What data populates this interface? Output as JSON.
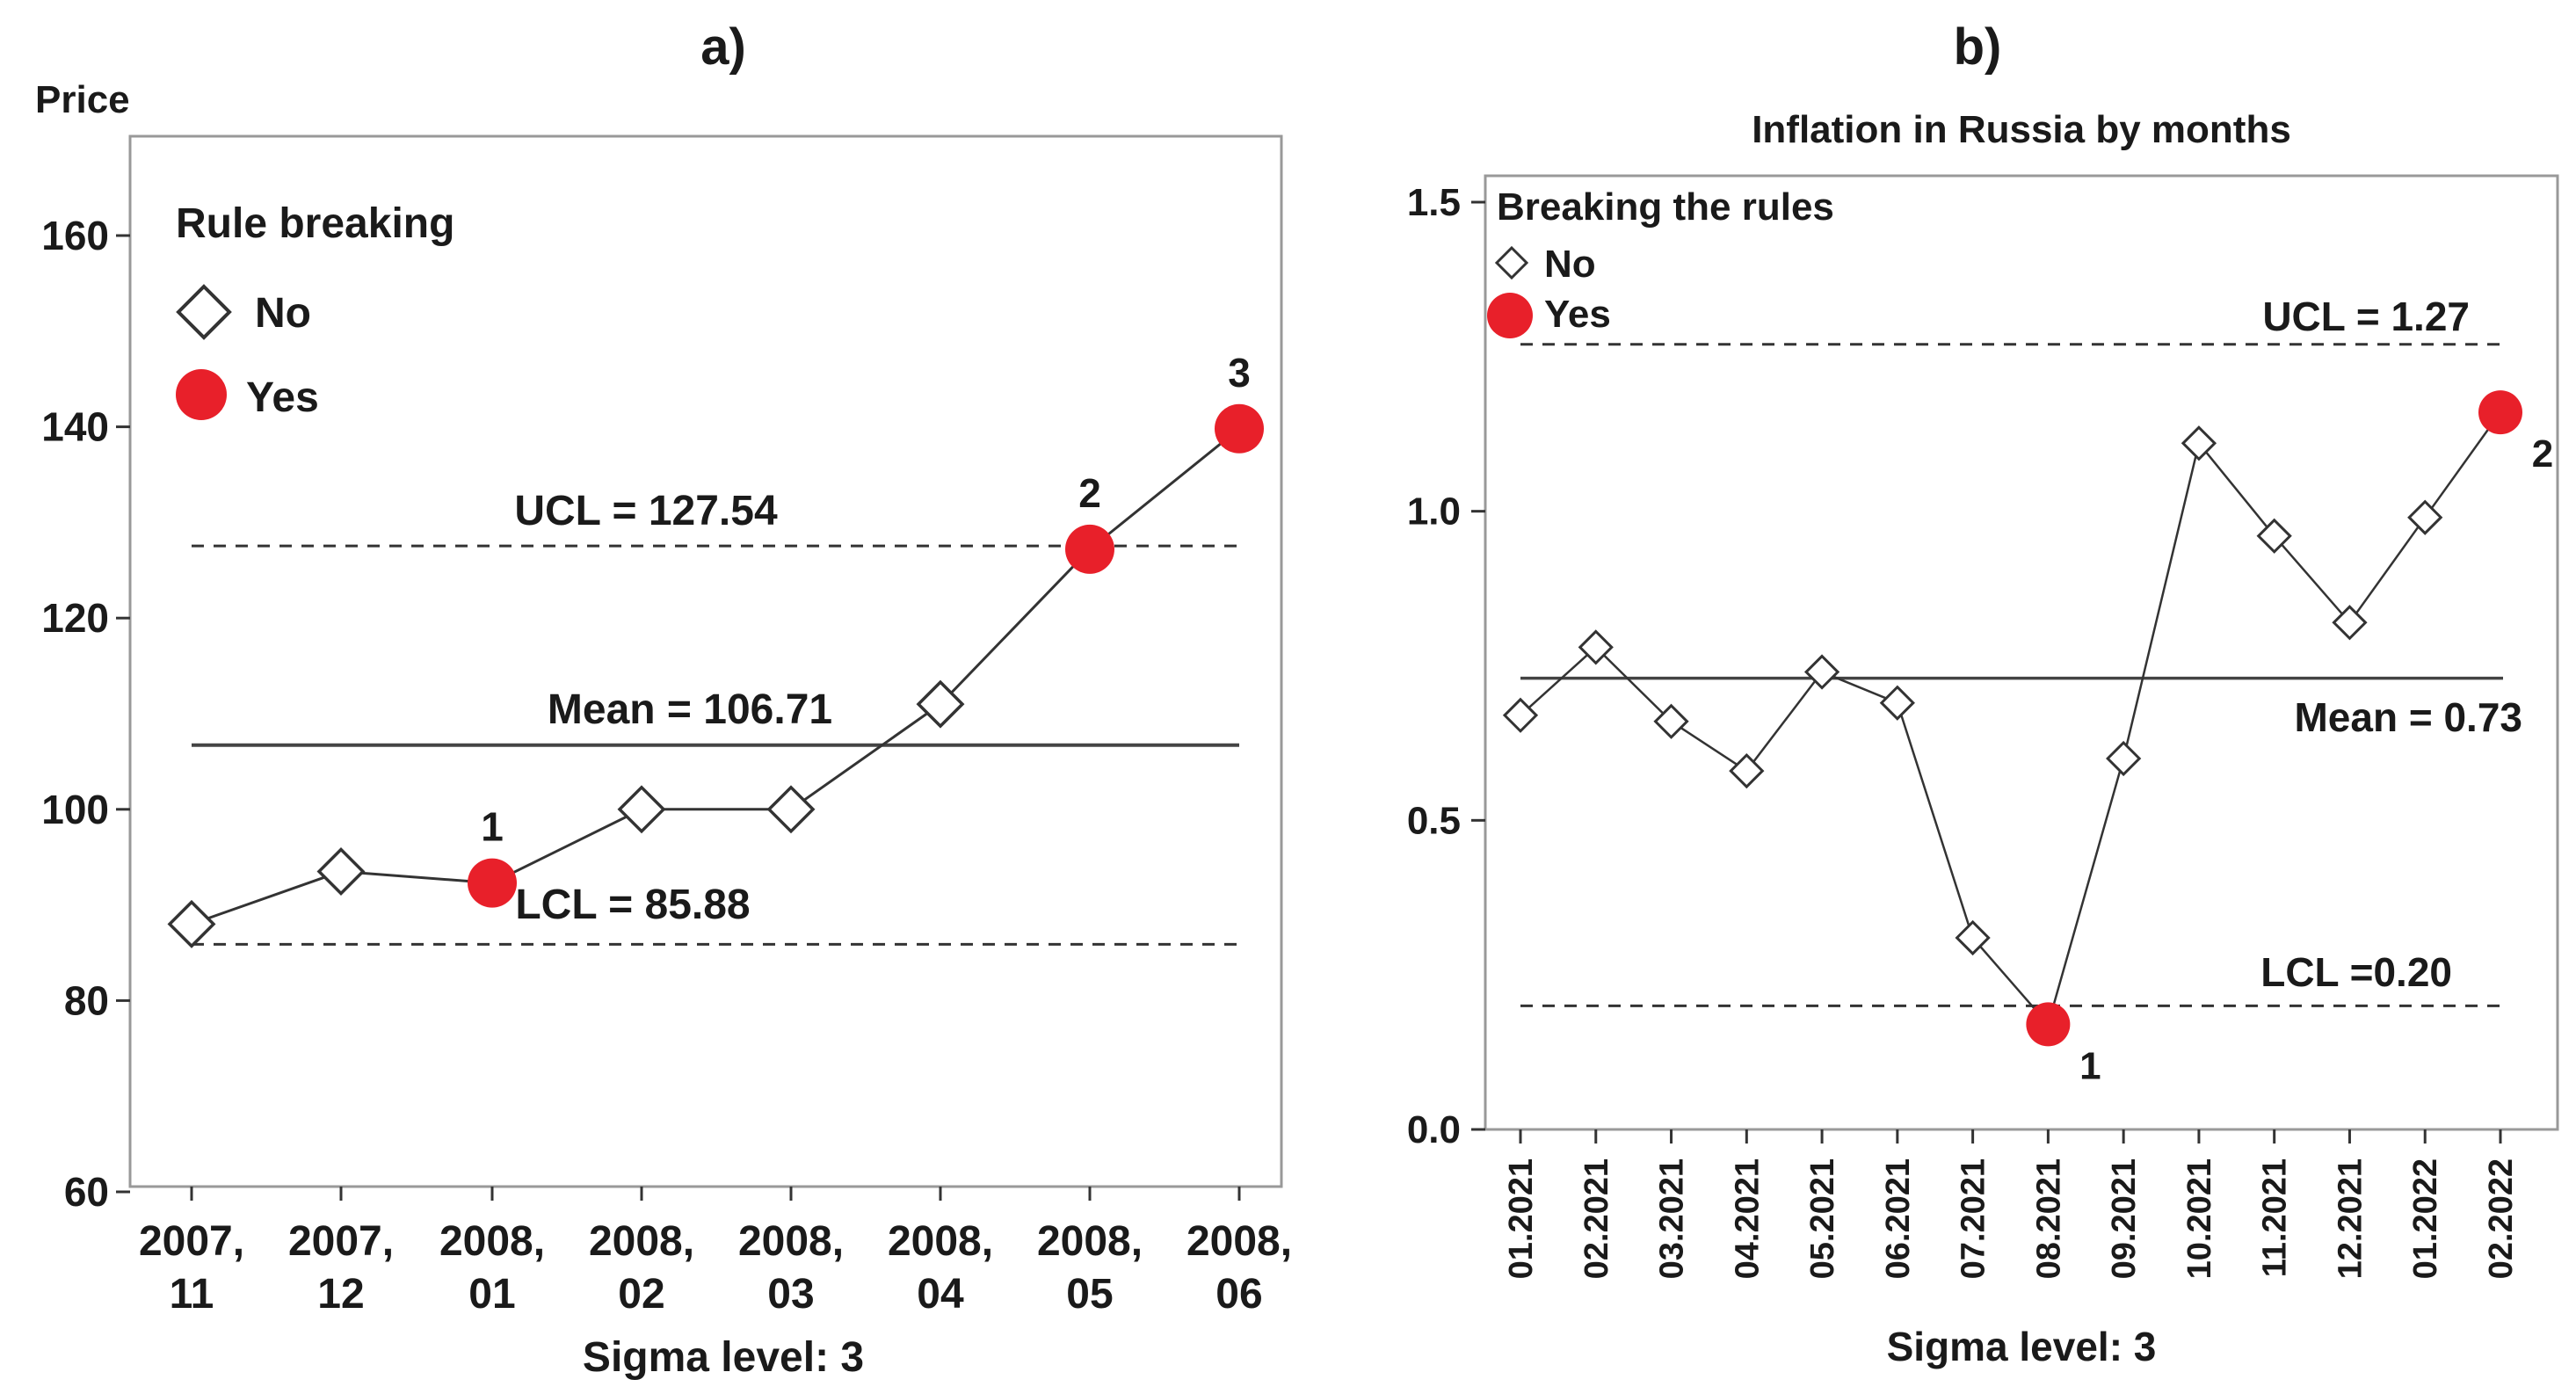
{
  "panels": {
    "a": {
      "label": "a)"
    },
    "b": {
      "label": "b)"
    }
  },
  "chart_data": [
    {
      "type": "line",
      "title": "",
      "ylabel": "Price",
      "xlabel": "Sigma level: 3",
      "ylim": [
        60,
        170
      ],
      "yticks": [
        60,
        80,
        100,
        120,
        140,
        160
      ],
      "categories": [
        [
          "2007,",
          "11"
        ],
        [
          "2007,",
          "12"
        ],
        [
          "2008,",
          "01"
        ],
        [
          "2008,",
          "02"
        ],
        [
          "2008,",
          "03"
        ],
        [
          "2008,",
          "04"
        ],
        [
          "2008,",
          "05"
        ],
        [
          "2008,",
          "06"
        ]
      ],
      "values": [
        88.0,
        93.5,
        92.3,
        100.0,
        100.0,
        111.0,
        127.2,
        139.8
      ],
      "rule_breaking": [
        false,
        false,
        true,
        false,
        false,
        false,
        true,
        true
      ],
      "point_labels": [
        "",
        "",
        "1",
        "",
        "",
        "",
        "2",
        "3"
      ],
      "legend": {
        "title": "Rule breaking",
        "no": "No",
        "yes": "Yes",
        "placement": "top-left"
      },
      "ucl": {
        "value": 127.54,
        "label": "UCL = 127.54"
      },
      "mean": {
        "value": 106.71,
        "label": "Mean = 106.71"
      },
      "lcl": {
        "value": 85.88,
        "label": "LCL = 85.88"
      }
    },
    {
      "type": "line",
      "title": "Inflation in Russia by months",
      "ylabel": "",
      "xlabel": "Sigma level: 3",
      "ylim": [
        0,
        1.55
      ],
      "yticks": [
        "0.0",
        "0.5",
        "1.0",
        "1.5"
      ],
      "categories": [
        "01.2021",
        "02.2021",
        "03.2021",
        "04.2021",
        "05.2021",
        "06.2021",
        "07.2021",
        "08.2021",
        "09.2021",
        "10.2021",
        "11.2021",
        "12.2021",
        "01.2022",
        "02.2022"
      ],
      "values": [
        0.67,
        0.78,
        0.66,
        0.58,
        0.74,
        0.69,
        0.31,
        0.17,
        0.6,
        1.11,
        0.96,
        0.82,
        0.99,
        1.16
      ],
      "rule_breaking": [
        false,
        false,
        false,
        false,
        false,
        false,
        false,
        true,
        false,
        false,
        false,
        false,
        false,
        true
      ],
      "point_labels": [
        "",
        "",
        "",
        "",
        "",
        "",
        "",
        "1",
        "",
        "",
        "",
        "",
        "",
        "2"
      ],
      "legend": {
        "title": "Breaking the rules",
        "no": "No",
        "yes": "Yes",
        "placement": "top-left"
      },
      "ucl": {
        "value": 1.27,
        "label": "UCL = 1.27"
      },
      "mean": {
        "value": 0.73,
        "label": "Mean = 0.73"
      },
      "lcl": {
        "value": 0.2,
        "label": "LCL =0.20"
      }
    }
  ],
  "colors": {
    "yes": "#e8202a",
    "line": "#333333",
    "frame": "#999999"
  }
}
